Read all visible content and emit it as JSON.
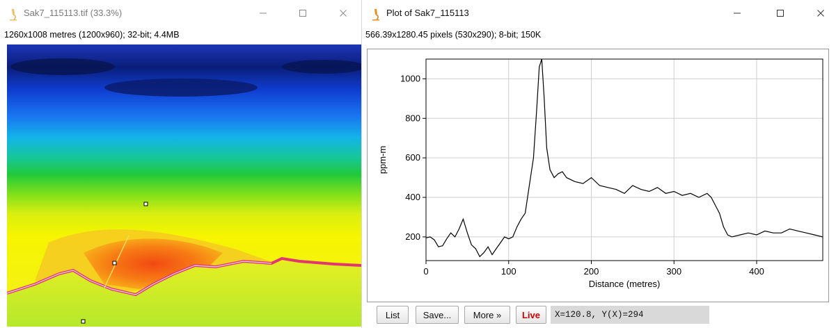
{
  "image_window": {
    "title": "Sak7_115113.tif (33.3%)",
    "info": "1260x1008 metres (1200x960); 32-bit; 4.4MB"
  },
  "plot_window": {
    "title": "Plot of Sak7_115113",
    "info": "566.39x1280.45 pixels (530x290); 8-bit; 150K",
    "buttons": {
      "list": "List",
      "save": "Save...",
      "more": "More »",
      "live": "Live"
    },
    "readout": "X=120.8, Y(X)=294",
    "colors": {
      "live": "#cc0000",
      "plot_line": "#000000",
      "grid": "#cfcfcf"
    }
  },
  "window_controls": {
    "minimize": "minimize-icon",
    "maximize": "maximize-icon",
    "close": "close-icon"
  },
  "chart_data": {
    "type": "line",
    "title": "",
    "xlabel": "Distance (metres)",
    "ylabel": "ppm-m",
    "xlim": [
      0,
      480
    ],
    "ylim": [
      80,
      1100
    ],
    "xticks": [
      0,
      100,
      200,
      300,
      400
    ],
    "yticks": [
      200,
      400,
      600,
      800,
      1000
    ],
    "grid": true,
    "series": [
      {
        "x": [
          0,
          5,
          10,
          15,
          20,
          25,
          30,
          35,
          40,
          45,
          50,
          55,
          60,
          65,
          70,
          75,
          80,
          85,
          90,
          95,
          100,
          105,
          110,
          115,
          120,
          125,
          130,
          134,
          137,
          140,
          143,
          146,
          150,
          155,
          160,
          165,
          170,
          180,
          190,
          200,
          210,
          220,
          230,
          240,
          250,
          260,
          270,
          280,
          290,
          300,
          310,
          320,
          330,
          340,
          345,
          350,
          355,
          360,
          365,
          370,
          380,
          390,
          400,
          410,
          420,
          430,
          440,
          450,
          460,
          470,
          480
        ],
        "y": [
          195,
          200,
          185,
          150,
          155,
          190,
          220,
          200,
          240,
          290,
          220,
          160,
          140,
          100,
          120,
          150,
          110,
          140,
          170,
          200,
          190,
          200,
          250,
          290,
          320,
          460,
          600,
          850,
          1060,
          1100,
          900,
          650,
          540,
          500,
          520,
          530,
          500,
          480,
          470,
          500,
          460,
          450,
          440,
          420,
          460,
          440,
          430,
          450,
          420,
          430,
          410,
          420,
          400,
          420,
          400,
          360,
          320,
          250,
          210,
          200,
          210,
          220,
          210,
          230,
          220,
          220,
          240,
          230,
          220,
          210,
          200
        ]
      }
    ]
  }
}
